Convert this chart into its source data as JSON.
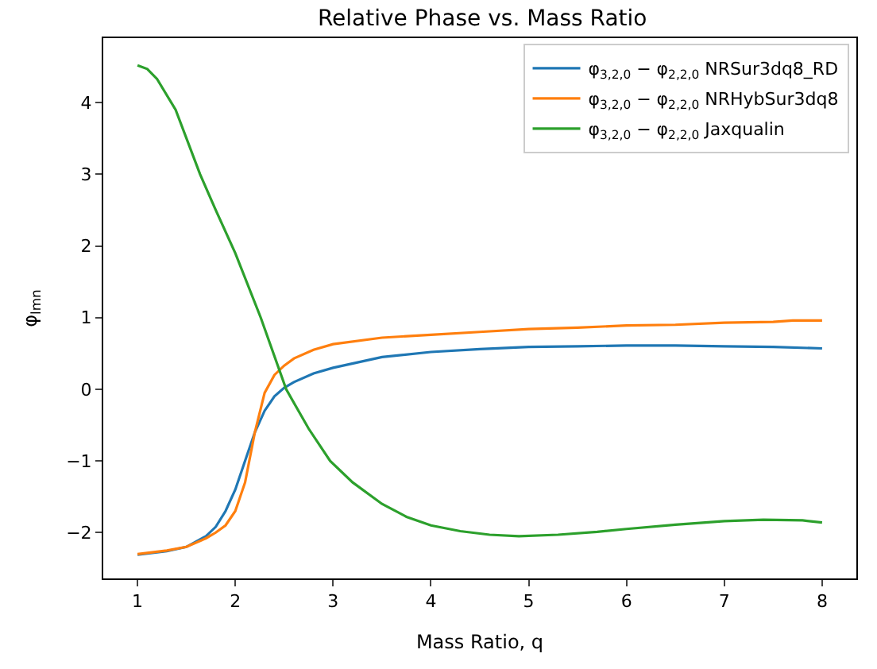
{
  "chart_data": {
    "type": "line",
    "title": "Relative Phase vs. Mass Ratio",
    "xlabel": "Mass Ratio, q",
    "ylabel": "φ$_{lmn}$",
    "xlim": [
      0.65,
      8.35
    ],
    "xticks": [
      1,
      2,
      3,
      4,
      5,
      6,
      7,
      8
    ],
    "ylim": [
      -2.64,
      4.9
    ],
    "yticks": [
      -2,
      -1,
      0,
      1,
      2,
      3,
      4
    ],
    "legend": "top right",
    "marker": "none",
    "line_style": "solid",
    "series": [
      {
        "name": "φ$_{3,2,0}$ − φ$_{2,2,0}$ NRSur3dq8_RD",
        "color": "#1f77b4",
        "x": [
          1,
          1.3,
          1.5,
          1.7,
          1.8,
          1.9,
          2.0,
          2.1,
          2.2,
          2.3,
          2.4,
          2.5,
          2.6,
          2.8,
          3,
          3.5,
          4,
          4.5,
          5,
          5.5,
          6,
          6.5,
          7,
          7.5,
          8
        ],
        "values": [
          -2.31,
          -2.26,
          -2.2,
          -2.05,
          -1.92,
          -1.7,
          -1.4,
          -1.0,
          -0.6,
          -0.3,
          -0.1,
          0.02,
          0.1,
          0.22,
          0.3,
          0.45,
          0.52,
          0.56,
          0.59,
          0.6,
          0.61,
          0.61,
          0.6,
          0.59,
          0.57
        ]
      },
      {
        "name": "φ$_{3,2,0}$ − φ$_{2,2,0}$ NRHybSur3dq8",
        "color": "#ff7f0e",
        "x": [
          1,
          1.3,
          1.5,
          1.7,
          1.8,
          1.9,
          2.0,
          2.1,
          2.2,
          2.3,
          2.4,
          2.5,
          2.6,
          2.8,
          3,
          3.5,
          4,
          4.5,
          5,
          5.5,
          6,
          6.5,
          7,
          7.5,
          7.7,
          8
        ],
        "values": [
          -2.3,
          -2.25,
          -2.2,
          -2.08,
          -2.0,
          -1.9,
          -1.7,
          -1.3,
          -0.6,
          -0.05,
          0.2,
          0.33,
          0.43,
          0.55,
          0.63,
          0.72,
          0.76,
          0.8,
          0.84,
          0.86,
          0.89,
          0.9,
          0.93,
          0.94,
          0.96,
          0.96
        ]
      },
      {
        "name": "φ$_{3,2,0}$ − φ$_{2,2,0}$ Jaxqualin",
        "color": "#2ca02c",
        "x": [
          1,
          1.1,
          1.2,
          1.39,
          1.64,
          1.8,
          2.0,
          2.26,
          2.52,
          2.75,
          2.97,
          3.2,
          3.5,
          3.75,
          4,
          4.3,
          4.6,
          4.9,
          5.3,
          5.7,
          6,
          6.5,
          7,
          7.4,
          7.8,
          8
        ],
        "values": [
          4.52,
          4.47,
          4.33,
          3.9,
          3.0,
          2.5,
          1.9,
          1.0,
          0.0,
          -0.55,
          -1.0,
          -1.3,
          -1.6,
          -1.78,
          -1.9,
          -1.98,
          -2.03,
          -2.05,
          -2.03,
          -1.99,
          -1.95,
          -1.89,
          -1.84,
          -1.82,
          -1.83,
          -1.86
        ]
      }
    ]
  }
}
